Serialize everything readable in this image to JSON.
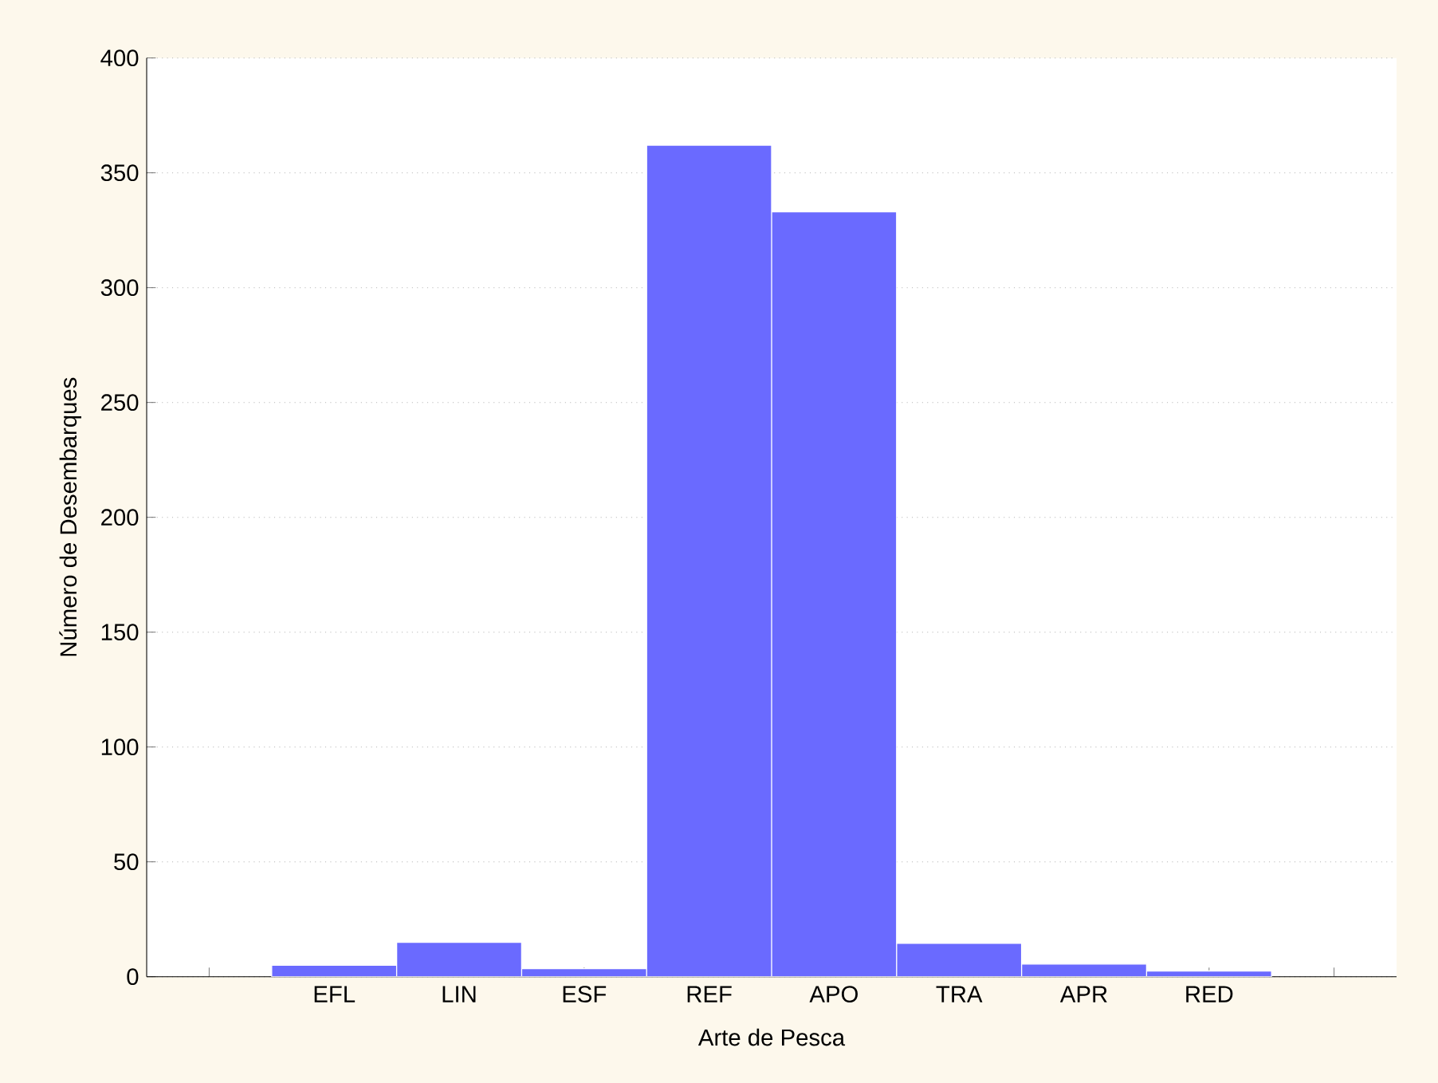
{
  "chart_data": {
    "type": "bar",
    "xlabel": "Arte de Pesca",
    "ylabel": "Número de Desembarques",
    "categories": [
      null,
      "EFL",
      "LIN",
      "ESF",
      "REF",
      "APO",
      "TRA",
      "APR",
      "RED",
      null
    ],
    "values": [
      null,
      5,
      15,
      3.5,
      362,
      333,
      14.5,
      5.5,
      2.5,
      null
    ],
    "color": "#6a6aff",
    "ylim": [
      0,
      400
    ],
    "yticks": [
      0,
      50,
      100,
      150,
      200,
      250,
      300,
      350,
      400
    ],
    "grid": "y"
  }
}
